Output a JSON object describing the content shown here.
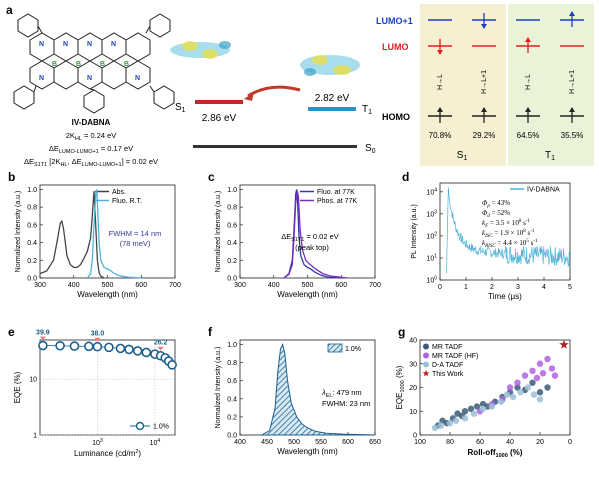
{
  "panel_a": {
    "letter": "a",
    "molecule_name": "IV-DABNA",
    "params": [
      {
        "text": "2K",
        "sub": "HL",
        "rest": " = 0.24 eV"
      },
      {
        "text": "ΔE",
        "sub": "LUMO-LUMO+1",
        "rest": " = 0.17 eV"
      },
      {
        "text": "ΔE",
        "sub": "S1T1",
        "rest": " [2K",
        "sub2": "HL",
        "rest2": ", ΔE",
        "sub3": "LUMO-LUMO+1",
        "rest3": "] = 0.02 eV"
      }
    ],
    "s1_label": "S",
    "s1_sub": "1",
    "s1_energy": "2.86 eV",
    "t1_label": "T",
    "t1_sub": "1",
    "t1_energy": "2.82 eV",
    "s0_label": "S",
    "s0_sub": "0",
    "orbital_labels": {
      "lumo1": "LUMO+1",
      "lumo": "LUMO",
      "homo": "HOMO"
    },
    "transitions": [
      {
        "label": "H→L",
        "percent": "70.8%"
      },
      {
        "label": "H→L+1",
        "percent": "29.2%"
      },
      {
        "label": "H→L",
        "percent": "64.5%"
      },
      {
        "label": "H→L+1",
        "percent": "35.5%"
      }
    ],
    "state_labels": [
      {
        "t": "S",
        "s": "1"
      },
      {
        "t": "T",
        "s": "1"
      }
    ],
    "colors": {
      "lumo1": "#1f3fbf",
      "lumo": "#e02020",
      "s_box": "#f6efd2",
      "t_box": "#e9f3d8",
      "s1_bar": "#c0282a",
      "t1_bar": "#2a8fc8",
      "arrow": "#c0392b"
    }
  },
  "panel_b": {
    "letter": "b",
    "chart_data": {
      "type": "line",
      "xlabel": "Wavelength (nm)",
      "ylabel": "Normalized Intensity (a.u.)",
      "xlim": [
        300,
        700
      ],
      "ylim": [
        0,
        1.05
      ],
      "xticks": [
        300,
        400,
        500,
        600,
        700
      ],
      "yticks": [
        "0.0",
        "0.2",
        "0.4",
        "0.6",
        "0.8",
        "1.0"
      ],
      "legend": [
        "Abs.",
        "Fluo. R.T."
      ],
      "series": [
        {
          "name": "Abs.",
          "color": "#444444",
          "x": [
            300,
            320,
            340,
            350,
            360,
            365,
            370,
            380,
            390,
            400,
            410,
            420,
            430,
            440,
            450,
            455,
            460,
            465,
            470,
            475,
            480,
            490
          ],
          "y": [
            0.05,
            0.08,
            0.2,
            0.4,
            0.62,
            0.64,
            0.55,
            0.25,
            0.15,
            0.12,
            0.12,
            0.15,
            0.22,
            0.3,
            0.45,
            0.7,
            0.98,
            0.6,
            0.2,
            0.06,
            0.02,
            0.0
          ]
        },
        {
          "name": "Fluo. R.T.",
          "color": "#4fb3d9",
          "x": [
            440,
            450,
            455,
            460,
            465,
            468,
            470,
            475,
            480,
            490,
            500,
            510,
            520,
            540,
            560,
            600
          ],
          "y": [
            0.0,
            0.05,
            0.2,
            0.6,
            0.95,
            1.0,
            0.85,
            0.4,
            0.2,
            0.12,
            0.1,
            0.08,
            0.05,
            0.02,
            0.01,
            0.0
          ]
        }
      ],
      "annotation_1": "FWHM = 14 nm",
      "annotation_2": "(78 meV)"
    }
  },
  "panel_c": {
    "letter": "c",
    "chart_data": {
      "type": "line",
      "xlabel": "Wavelength (nm)",
      "ylabel": "Normalized Intensity (a.u.)",
      "xlim": [
        300,
        700
      ],
      "ylim": [
        0,
        1.05
      ],
      "xticks": [
        300,
        400,
        500,
        600,
        700
      ],
      "yticks": [
        "0.0",
        "0.2",
        "0.4",
        "0.6",
        "0.8",
        "1.0"
      ],
      "legend": [
        "Fluo. at 77K",
        "Phos. at 77K"
      ],
      "series": [
        {
          "name": "Fluo. at 77K",
          "color": "#2e3aa8",
          "x": [
            430,
            445,
            455,
            460,
            465,
            468,
            470,
            475,
            480,
            490,
            500,
            510,
            520,
            540,
            560,
            600
          ],
          "y": [
            0.0,
            0.05,
            0.2,
            0.55,
            0.95,
            1.0,
            0.9,
            0.45,
            0.25,
            0.15,
            0.12,
            0.1,
            0.07,
            0.03,
            0.01,
            0.0
          ]
        },
        {
          "name": "Phos. at 77K",
          "color": "#7b2fbf",
          "x": [
            430,
            445,
            455,
            460,
            465,
            470,
            473,
            478,
            485,
            495,
            505,
            515,
            525,
            545,
            570,
            620
          ],
          "y": [
            0.0,
            0.04,
            0.15,
            0.45,
            0.85,
            0.98,
            0.92,
            0.55,
            0.32,
            0.2,
            0.16,
            0.13,
            0.1,
            0.05,
            0.02,
            0.0
          ]
        }
      ],
      "annotation_1": "ΔE",
      "annotation_1_sub": "S1T1",
      "annotation_1_rest": " = 0.02 eV",
      "annotation_2": "(peak top)"
    }
  },
  "panel_d": {
    "letter": "d",
    "chart_data": {
      "type": "line",
      "xlabel": "Time (μs)",
      "ylabel": "PL Intensity (a.u.)",
      "xlim": [
        0,
        5
      ],
      "ylim_log": [
        0,
        4.4
      ],
      "xticks": [
        0,
        1,
        2,
        3,
        4,
        5
      ],
      "yticks": [
        {
          "b": "10",
          "e": "0"
        },
        {
          "b": "10",
          "e": "1"
        },
        {
          "b": "10",
          "e": "2"
        },
        {
          "b": "10",
          "e": "3"
        },
        {
          "b": "10",
          "e": "4"
        }
      ],
      "legend": [
        "IV-DABNA"
      ],
      "color": "#4fb3d9",
      "params": [
        {
          "sym": "Φ",
          "sub": "p",
          "rest": " = 43%"
        },
        {
          "sym": "Φ",
          "sub": "d",
          "rest": " = 52%"
        },
        {
          "sym": "k",
          "sub": "F",
          "rest": " = 3.5 × 10",
          "sup": "8",
          "rest2": " s",
          "sup2": "-1"
        },
        {
          "sym": "k",
          "sub": "ISC",
          "rest": " = 1.9 × 10",
          "sup": "8",
          "rest2": " s",
          "sup2": "-1"
        },
        {
          "sym": "k",
          "sub": "RISC",
          "rest": " = 4.4 × 10",
          "sup": "5",
          "rest2": " s",
          "sup2": "-1"
        }
      ]
    }
  },
  "panel_e": {
    "letter": "e",
    "chart_data": {
      "type": "scatter",
      "xlabel": "Luminance (cd/m",
      "xlabel_sup": "2",
      "xlabel_end": ")",
      "ylabel": "EQE (%)",
      "xlim_log": [
        2.0,
        4.35
      ],
      "ylim_log": [
        0,
        1.7
      ],
      "xticks": [
        {
          "b": "10",
          "e": "3",
          "v": 3
        },
        {
          "b": "10",
          "e": "4",
          "v": 4
        }
      ],
      "yticks": [
        {
          "label": "1",
          "v": 0
        },
        {
          "label": "10",
          "v": 1
        }
      ],
      "x_log": [
        2.05,
        2.35,
        2.6,
        2.85,
        3.0,
        3.2,
        3.4,
        3.55,
        3.7,
        3.85,
        4.0,
        4.1,
        4.18,
        4.24,
        4.3
      ],
      "y": [
        39.9,
        39.5,
        39,
        38.6,
        38.0,
        37,
        35.5,
        34,
        32,
        30,
        28,
        26.2,
        24,
        21,
        18
      ],
      "labels": [
        {
          "text": "39.9",
          "xlog": 2.05,
          "y": 39.9
        },
        {
          "text": "38.0",
          "xlog": 3.0,
          "y": 38.0
        },
        {
          "text": "26.2",
          "xlog": 4.1,
          "y": 26.2
        }
      ],
      "legend": "1.0%",
      "color": "#1b5f8c",
      "marker_color": "#f08080"
    }
  },
  "panel_f": {
    "letter": "f",
    "chart_data": {
      "type": "area",
      "xlabel": "Wavelength (nm)",
      "ylabel": "Normalized Intensity (a.u.)",
      "xlim": [
        400,
        650
      ],
      "ylim": [
        0,
        1.05
      ],
      "xticks": [
        400,
        450,
        500,
        550,
        600,
        650
      ],
      "yticks": [
        "0.0",
        "0.2",
        "0.4",
        "0.6",
        "0.8",
        "1.0"
      ],
      "x": [
        440,
        455,
        465,
        470,
        475,
        479,
        483,
        488,
        495,
        505,
        515,
        525,
        540,
        560,
        590,
        650
      ],
      "y": [
        0.0,
        0.05,
        0.3,
        0.7,
        0.95,
        1.0,
        0.9,
        0.6,
        0.35,
        0.2,
        0.12,
        0.08,
        0.04,
        0.02,
        0.01,
        0.0
      ],
      "legend": "1.0%",
      "annotation_1_sym": "λ",
      "annotation_1_sub": "EL",
      "annotation_1_rest": ": 479 nm",
      "annotation_2": "FWHM: 23 nm",
      "color": "#1b5f8c"
    }
  },
  "panel_g": {
    "letter": "g",
    "chart_data": {
      "type": "scatter",
      "xlabel": "Roll-off",
      "xlabel_sub": "1000",
      "xlabel_end": " (%)",
      "ylabel": "EQE",
      "ylabel_sub": "1000",
      "ylabel_end": " (%)",
      "xlim": [
        100,
        0
      ],
      "ylim": [
        0,
        40
      ],
      "xticks": [
        100,
        80,
        60,
        40,
        20,
        0
      ],
      "yticks": [
        0,
        10,
        20,
        30,
        40
      ],
      "legend": [
        "MR TADF",
        "MR TADF (HF)",
        "D-A TADF",
        "This Work"
      ],
      "series": [
        {
          "name": "MR TADF",
          "color": "#3d5a78",
          "points": [
            [
              88,
              4
            ],
            [
              85,
              6
            ],
            [
              82,
              5
            ],
            [
              78,
              7
            ],
            [
              75,
              9
            ],
            [
              72,
              8
            ],
            [
              70,
              10
            ],
            [
              66,
              11
            ],
            [
              62,
              12
            ],
            [
              58,
              13
            ],
            [
              55,
              12
            ],
            [
              50,
              14
            ],
            [
              45,
              16
            ],
            [
              40,
              18
            ],
            [
              35,
              20
            ],
            [
              30,
              19
            ],
            [
              25,
              22
            ],
            [
              20,
              18
            ],
            [
              15,
              20
            ]
          ]
        },
        {
          "name": "MR TADF (HF)",
          "color": "#b060e0",
          "points": [
            [
              60,
              10
            ],
            [
              52,
              13
            ],
            [
              45,
              15
            ],
            [
              40,
              20
            ],
            [
              35,
              22
            ],
            [
              30,
              25
            ],
            [
              25,
              27
            ],
            [
              20,
              30
            ],
            [
              15,
              32
            ],
            [
              12,
              28
            ],
            [
              10,
              25
            ],
            [
              22,
              24
            ],
            [
              18,
              26
            ]
          ]
        },
        {
          "name": "D-A TADF",
          "color": "#9bbfd8",
          "points": [
            [
              90,
              3
            ],
            [
              86,
              4
            ],
            [
              80,
              5
            ],
            [
              76,
              6
            ],
            [
              70,
              7
            ],
            [
              64,
              9
            ],
            [
              58,
              11
            ],
            [
              52,
              12
            ],
            [
              46,
              14
            ],
            [
              42,
              17
            ],
            [
              38,
              16
            ],
            [
              33,
              18
            ],
            [
              28,
              20
            ],
            [
              24,
              17
            ],
            [
              20,
              15
            ]
          ]
        },
        {
          "name": "This Work",
          "color": "#b22222",
          "points": [
            [
              4,
              38
            ]
          ]
        }
      ]
    }
  }
}
